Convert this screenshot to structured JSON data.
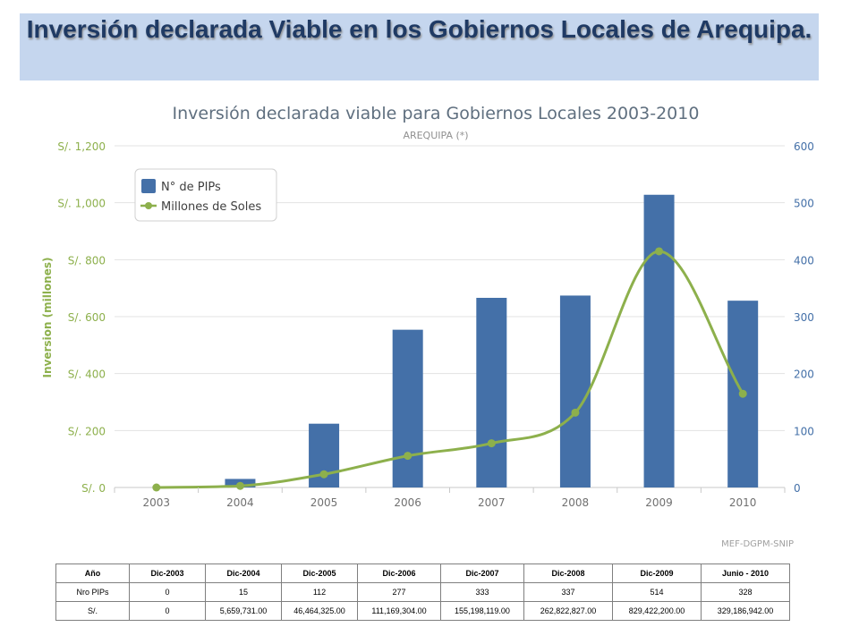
{
  "slide": {
    "title": "Inversión declarada Viable en  los Gobiernos Locales de Arequipa."
  },
  "chart_data": {
    "type": "bar",
    "title": "Inversión declarada viable para Gobiernos Locales 2003-2010",
    "subtitle": "AREQUIPA (*)",
    "ylabel": "Inversion (millones)",
    "source": "MEF-DGPM-SNIP",
    "categories": [
      "2003",
      "2004",
      "2005",
      "2006",
      "2007",
      "2008",
      "2009",
      "2010"
    ],
    "series": [
      {
        "name": "N° de PIPs",
        "kind": "bar",
        "axis": "right",
        "color": "#4470a8",
        "values": [
          0,
          15,
          112,
          277,
          333,
          337,
          514,
          328
        ]
      },
      {
        "name": "Millones de Soles",
        "kind": "line",
        "axis": "left",
        "color": "#8db04c",
        "values": [
          0,
          5.66,
          46.46,
          111.17,
          155.2,
          262.82,
          829.42,
          329.19
        ]
      }
    ],
    "y_left": {
      "min": 0,
      "max": 1200,
      "ticks": [
        "S/. 0",
        "S/. 200",
        "S/. 400",
        "S/. 600",
        "S/. 800",
        "S/. 1,000",
        "S/. 1,200"
      ]
    },
    "y_right": {
      "min": 0,
      "max": 600,
      "ticks": [
        "0",
        "100",
        "200",
        "300",
        "400",
        "500",
        "600"
      ]
    },
    "grid": true,
    "legend_position": "top-left"
  },
  "table": {
    "header": [
      "Año",
      "Dic-2003",
      "Dic-2004",
      "Dic-2005",
      "Dic-2006",
      "Dic-2007",
      "Dic-2008",
      "Dic-2009",
      "Junio - 2010"
    ],
    "rows": [
      [
        "Nro PIPs",
        "0",
        "15",
        "112",
        "277",
        "333",
        "337",
        "514",
        "328"
      ],
      [
        "S/.",
        "0",
        "5,659,731.00",
        "46,464,325.00",
        "111,169,304.00",
        "155,198,119.00",
        "262,822,827.00",
        "829,422,200.00",
        "329,186,942.00"
      ]
    ]
  }
}
